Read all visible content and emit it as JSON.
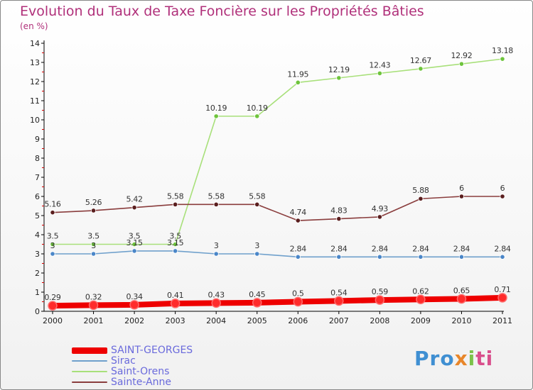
{
  "chart_data": {
    "type": "line",
    "title": "Evolution du Taux de Taxe Foncière sur les Propriétés Bâties",
    "subtitle": "(en %)",
    "xlabel": "",
    "ylabel": "",
    "ylim": [
      0,
      14
    ],
    "yticks": [
      "0",
      "1",
      "2",
      "3",
      "4",
      "5",
      "6",
      "7",
      "8",
      "9",
      "10",
      "11",
      "12",
      "13",
      "14"
    ],
    "categories": [
      "2000",
      "2001",
      "2002",
      "2003",
      "2004",
      "2005",
      "2006",
      "2007",
      "2008",
      "2009",
      "2010",
      "2011"
    ],
    "series": [
      {
        "name": "SAINT-GEORGES",
        "color": "#ee0000",
        "marker": "#ff2b2b",
        "values": [
          0.29,
          0.32,
          0.34,
          0.41,
          0.43,
          0.45,
          0.5,
          0.54,
          0.59,
          0.62,
          0.65,
          0.71
        ],
        "labels": [
          "0.29",
          "0.32",
          "0.34",
          "0.41",
          "0.43",
          "0.45",
          "0.5",
          "0.54",
          "0.59",
          "0.62",
          "0.65",
          "0.71"
        ]
      },
      {
        "name": "Sirac",
        "color": "#6fa0cc",
        "marker": "#4a86c8",
        "values": [
          3,
          3,
          3.15,
          3.15,
          3,
          3,
          2.84,
          2.84,
          2.84,
          2.84,
          2.84,
          2.84
        ],
        "labels": [
          "3",
          "3",
          "3.15",
          "3.15",
          "3",
          "3",
          "2.84",
          "2.84",
          "2.84",
          "2.84",
          "2.84",
          "2.84"
        ]
      },
      {
        "name": "Saint-Orens",
        "color": "#a8e07a",
        "marker": "#6ec43c",
        "values": [
          3.5,
          3.5,
          3.5,
          3.5,
          10.19,
          10.19,
          11.95,
          12.19,
          12.43,
          12.67,
          12.92,
          13.18
        ],
        "labels": [
          "3.5",
          "3.5",
          "3.5",
          "3.5",
          "10.19",
          "10.19",
          "11.95",
          "12.19",
          "12.43",
          "12.67",
          "12.92",
          "13.18"
        ]
      },
      {
        "name": "Sainte-Anne",
        "color": "#8a3d3d",
        "marker": "#5a1e1e",
        "values": [
          5.16,
          5.26,
          5.42,
          5.58,
          5.58,
          5.58,
          4.74,
          4.83,
          4.93,
          5.88,
          6,
          6
        ],
        "labels": [
          "5.16",
          "5.26",
          "5.42",
          "5.58",
          "5.58",
          "5.58",
          "4.74",
          "4.83",
          "4.93",
          "5.88",
          "6",
          "6"
        ]
      }
    ],
    "legend": [
      {
        "name": "SAINT-GEORGES",
        "color": "#ee0000"
      },
      {
        "name": "Sirac",
        "color": "#6fa0cc"
      },
      {
        "name": "Saint-Orens",
        "color": "#a8e07a"
      },
      {
        "name": "Sainte-Anne",
        "color": "#8a3d3d"
      }
    ]
  },
  "brand": {
    "p1": "Pro",
    "p2": "x",
    "p3": "i",
    "p4": "ti"
  }
}
